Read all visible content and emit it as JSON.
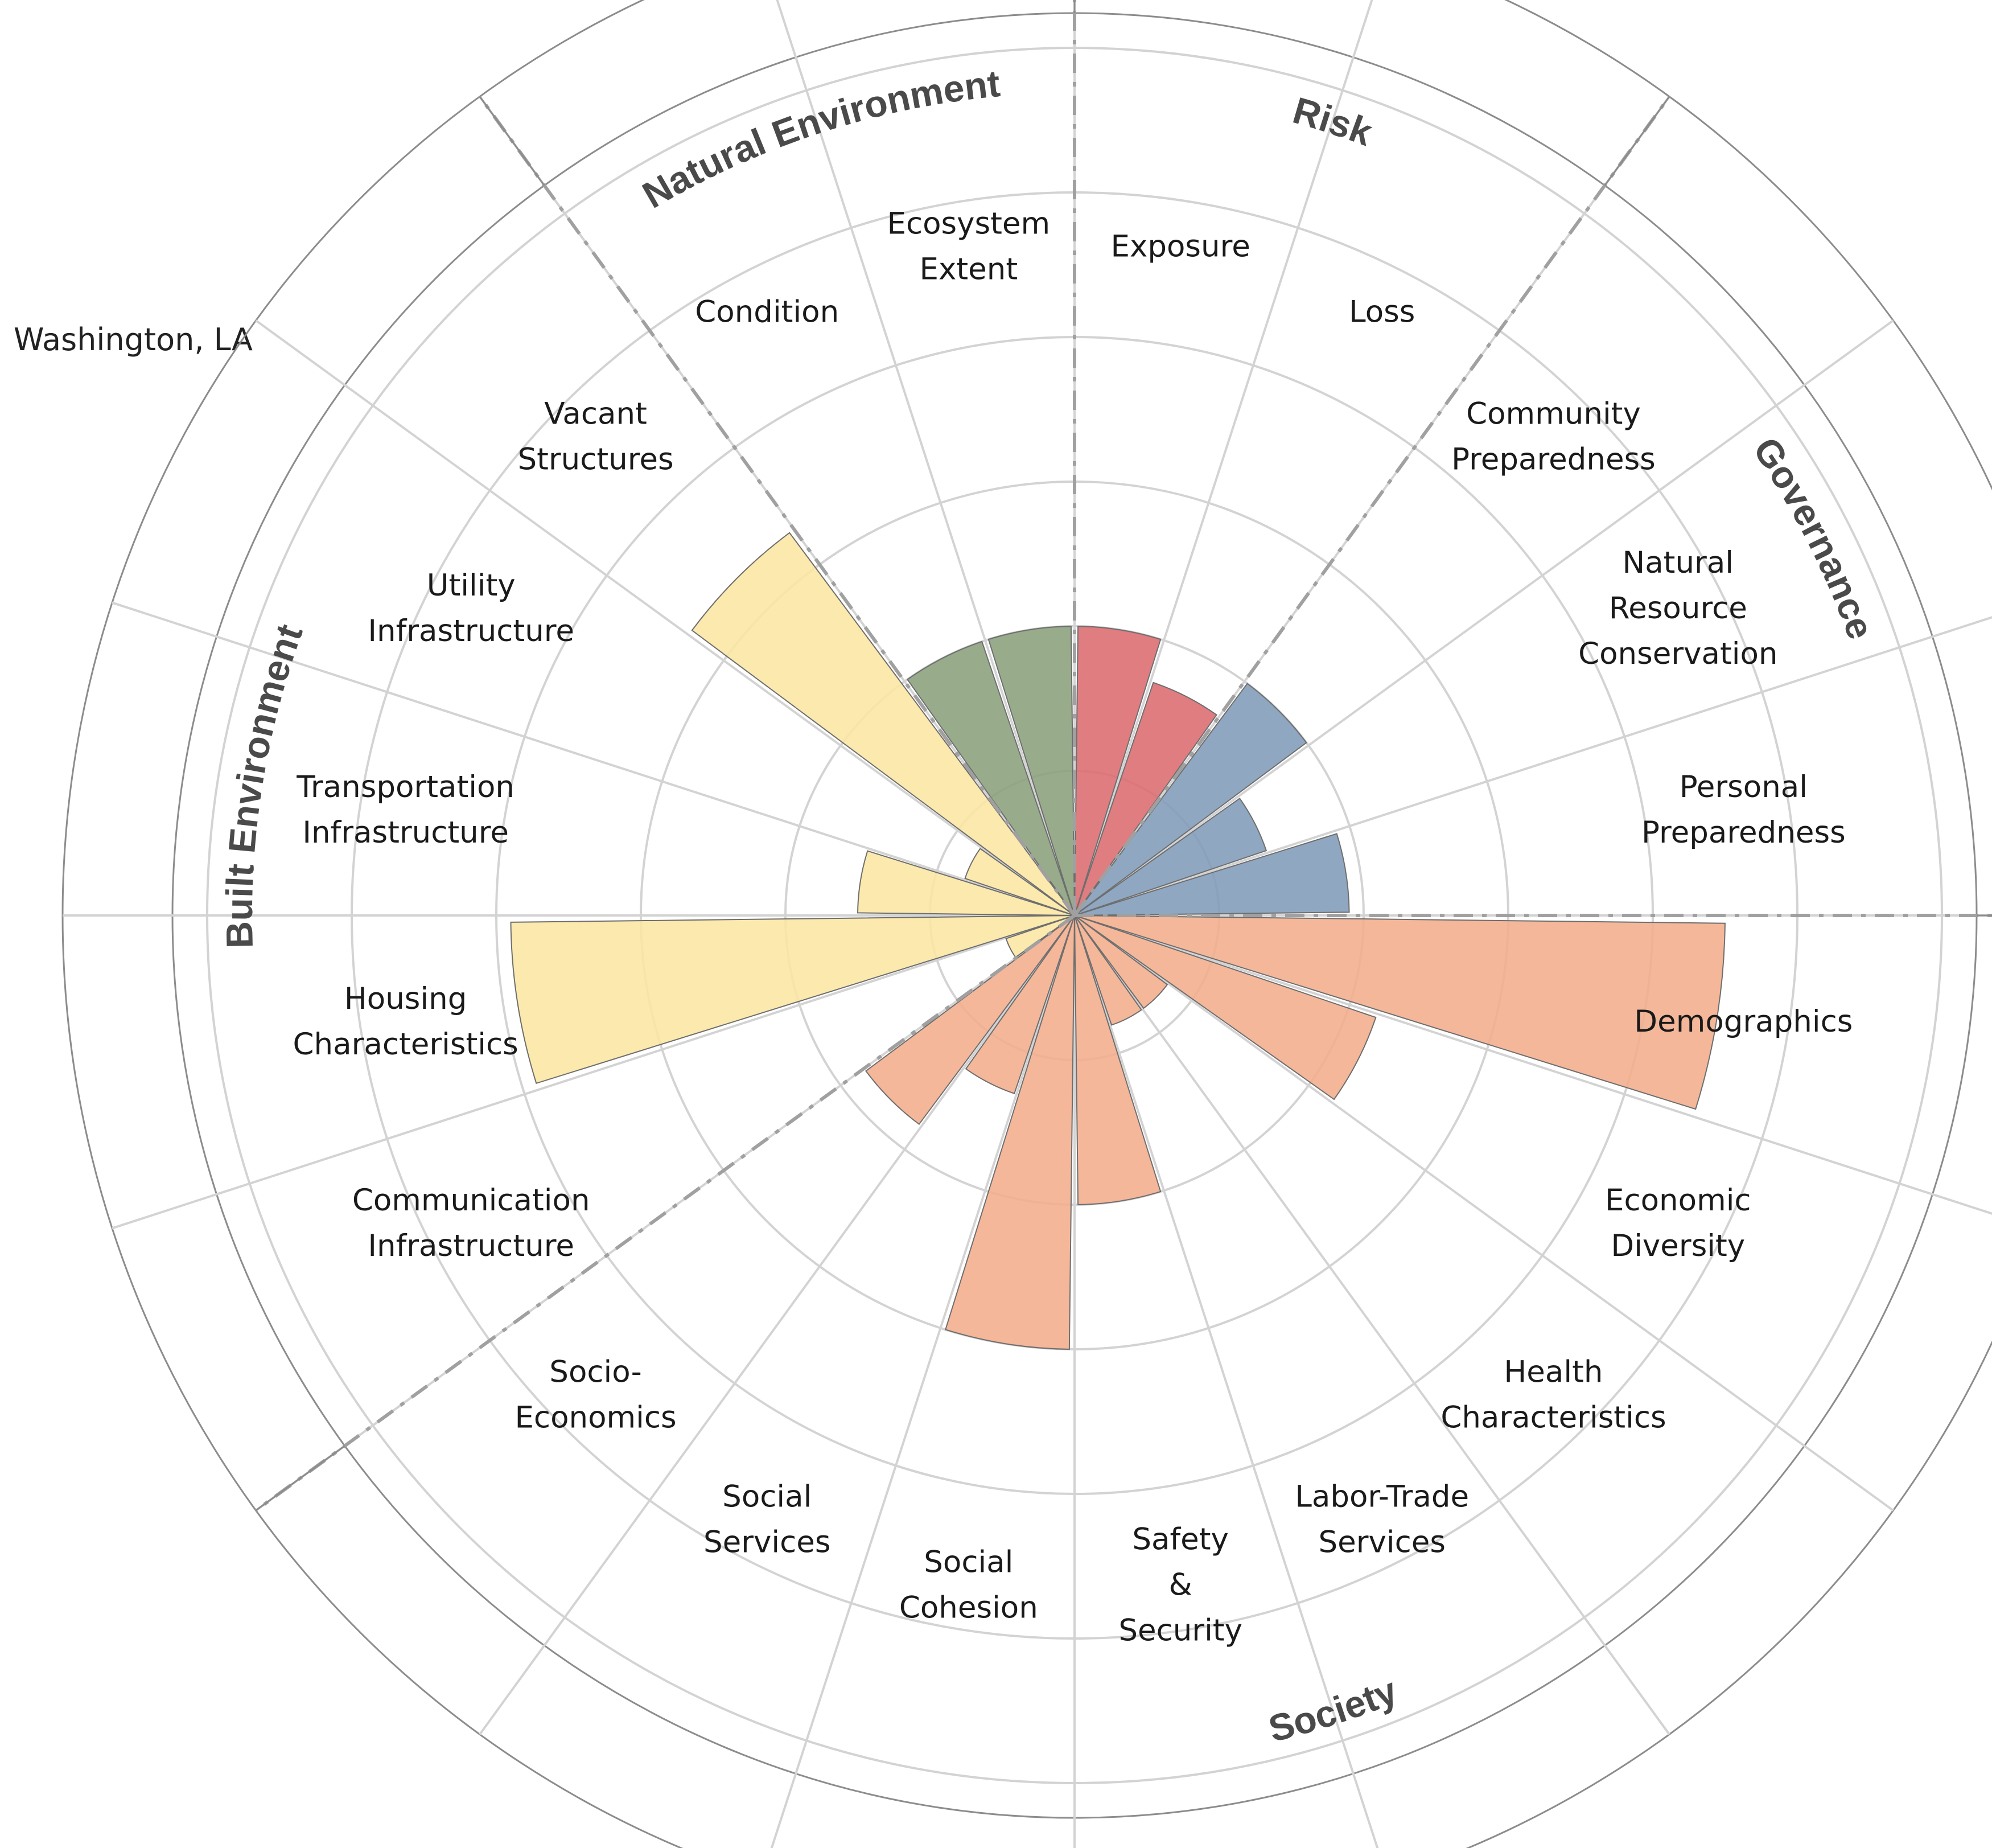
{
  "chart_data": {
    "type": "polar-bar",
    "title": "",
    "subtitle": "Washington, LA",
    "rmax": 7,
    "groups": [
      {
        "name": "Risk",
        "color": "#db6b6f"
      },
      {
        "name": "Governance",
        "color": "#7f9bb8"
      },
      {
        "name": "Society",
        "color": "#f2ad8c"
      },
      {
        "name": "Built Environment",
        "color": "#fbe6a2"
      },
      {
        "name": "Natural Environment",
        "color": "#8aa07c"
      }
    ],
    "categories": [
      {
        "label": "Exposure",
        "group": "Risk",
        "value": 2.0
      },
      {
        "label": "Loss",
        "group": "Risk",
        "value": 1.7
      },
      {
        "label": "Community\nPreparedness",
        "group": "Governance",
        "value": 2.0
      },
      {
        "label": "Natural\nResource\nConservation",
        "group": "Governance",
        "value": 1.4
      },
      {
        "label": "Personal\nPreparedness",
        "group": "Governance",
        "value": 1.9
      },
      {
        "label": "Demographics",
        "group": "Society",
        "value": 4.5
      },
      {
        "label": "Economic\nDiversity",
        "group": "Society",
        "value": 2.2
      },
      {
        "label": "Health\nCharacteristics",
        "group": "Society",
        "value": 0.8
      },
      {
        "label": "Labor-Trade\nServices",
        "group": "Society",
        "value": 0.8
      },
      {
        "label": "Safety\n&\nSecurity",
        "group": "Society",
        "value": 2.0
      },
      {
        "label": "Social\nCohesion",
        "group": "Society",
        "value": 3.0
      },
      {
        "label": "Social\nServices",
        "group": "Society",
        "value": 1.3
      },
      {
        "label": "Socio-\nEconomics",
        "group": "Society",
        "value": 1.8
      },
      {
        "label": "Communication\nInfrastructure",
        "group": "Built Environment",
        "value": 0.5
      },
      {
        "label": "Housing\nCharacteristics",
        "group": "Built Environment",
        "value": 3.9
      },
      {
        "label": "Transportation\nInfrastructure",
        "group": "Built Environment",
        "value": 1.5
      },
      {
        "label": "Utility\nInfrastructure",
        "group": "Built Environment",
        "value": 0.8
      },
      {
        "label": "Vacant\nStructures",
        "group": "Built Environment",
        "value": 3.3
      },
      {
        "label": "Condition",
        "group": "Natural Environment",
        "value": 2.0
      },
      {
        "label": "Ecosystem\nExtent",
        "group": "Natural Environment",
        "value": 2.0
      }
    ]
  }
}
